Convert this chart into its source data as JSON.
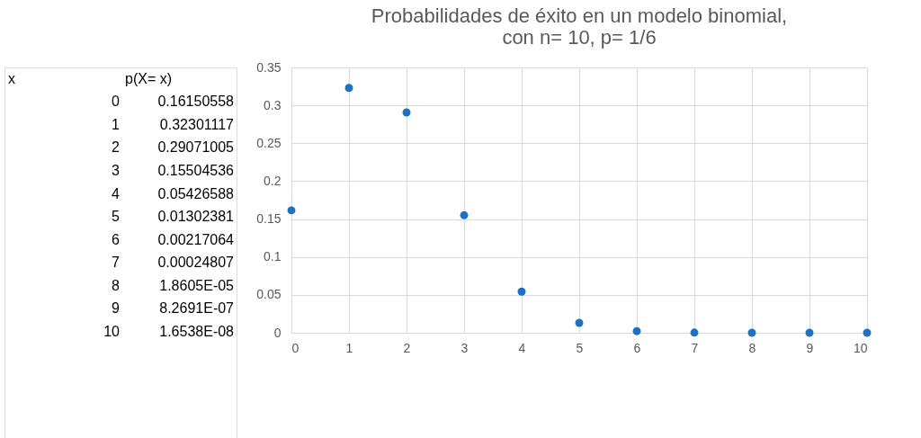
{
  "chart_data": {
    "type": "scatter",
    "title": "Probabilidades de éxito en un modelo binomial,\ncon n= 10, p= 1/6",
    "x": [
      0,
      1,
      2,
      3,
      4,
      5,
      6,
      7,
      8,
      9,
      10
    ],
    "values": [
      0.16150558,
      0.32301117,
      0.29071005,
      0.15504536,
      0.05426588,
      0.01302381,
      0.00217064,
      0.00024807,
      1.8605e-05,
      8.2691e-07,
      1.6538e-08
    ],
    "annotations": [
      "x",
      "p(X= x)",
      "0",
      "0.16150558",
      "1",
      "0.32301117",
      "2",
      "0.29071005",
      "3",
      "0.15504536",
      "4",
      "0.05426588",
      "5",
      "0.01302381",
      "6",
      "0.00217064",
      "7",
      "0.00024807",
      "8",
      "1.8605E-05",
      "9",
      "8.2691E-07",
      "10",
      "1.6538E-08"
    ],
    "color": "#1f6fc5",
    "marker": "circle",
    "grid": true,
    "xlim": [
      0,
      10
    ],
    "xticks": [
      0,
      1,
      2,
      3,
      4,
      5,
      6,
      7,
      8,
      9,
      10
    ],
    "ylim": [
      0,
      0.35
    ],
    "yticks": [
      0,
      0.05,
      0.1,
      0.15,
      0.2,
      0.25,
      0.3,
      0.35
    ]
  }
}
